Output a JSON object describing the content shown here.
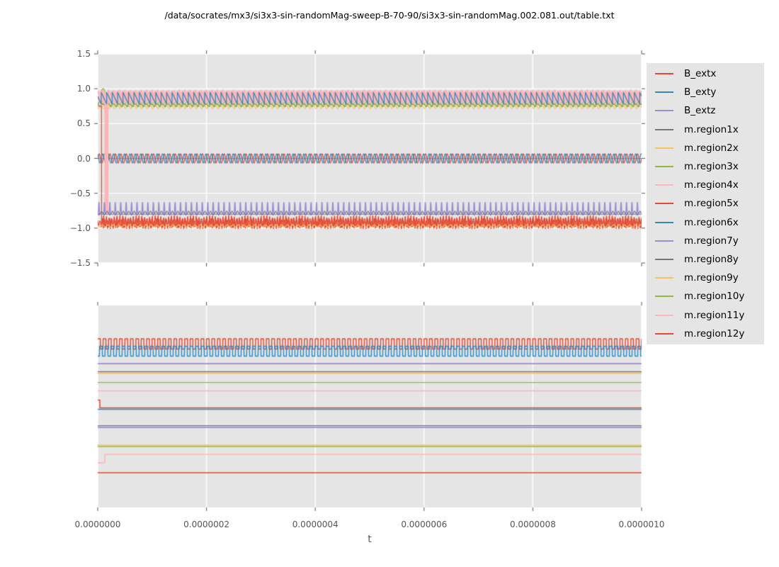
{
  "title": "/data/socrates/mx3/si3x3-sin-randomMag-sweep-B-70-90/si3x3-sin-randomMag.002.081.out/table.txt",
  "xlabel": "t",
  "colors": {
    "figure_bg": "#ffffff",
    "axes_bg": "#e5e5e5",
    "grid": "#ffffff",
    "tick_mark": "#555555",
    "tick_text": "#555555",
    "title_text": "#000000",
    "legend_bg": "#e5e5e5",
    "legend_text": "#000000"
  },
  "palette": {
    "red": "#E24A33",
    "blue": "#348ABD",
    "purple": "#988ED5",
    "gray": "#777777",
    "orange": "#FBC15E",
    "green": "#8EBA42",
    "pink": "#FFB5B8"
  },
  "legend": {
    "entries": [
      {
        "label": "B_extx",
        "color": "red"
      },
      {
        "label": "B_exty",
        "color": "blue"
      },
      {
        "label": "B_extz",
        "color": "purple"
      },
      {
        "label": "m.region1x",
        "color": "gray"
      },
      {
        "label": "m.region2x",
        "color": "orange"
      },
      {
        "label": "m.region3x",
        "color": "green"
      },
      {
        "label": "m.region4x",
        "color": "pink"
      },
      {
        "label": "m.region5x",
        "color": "red"
      },
      {
        "label": "m.region6x",
        "color": "blue"
      },
      {
        "label": "m.region7y",
        "color": "purple"
      },
      {
        "label": "m.region8y",
        "color": "gray"
      },
      {
        "label": "m.region9y",
        "color": "orange"
      },
      {
        "label": "m.region10y",
        "color": "green"
      },
      {
        "label": "m.region11y",
        "color": "pink"
      },
      {
        "label": "m.region12y",
        "color": "red"
      }
    ]
  },
  "chart_data": [
    {
      "subplot": "top",
      "type": "line",
      "xlim": [
        0,
        1e-06
      ],
      "ylim": [
        -1.5,
        1.5
      ],
      "grid": "both",
      "x_ticks": {
        "values": [
          0,
          2e-07,
          4e-07,
          6e-07,
          8e-07,
          1e-06
        ],
        "labels": [
          "",
          "",
          "",
          "",
          "",
          ""
        ]
      },
      "y_ticks": {
        "values": [
          1.5,
          1.0,
          0.5,
          0.0,
          -0.5,
          -1.0,
          -1.5
        ],
        "labels": [
          "1.5",
          "1.0",
          "0.5",
          "0.0",
          "−0.5",
          "−1.0",
          "−1.5"
        ]
      },
      "series": [
        {
          "name": "B_extz",
          "color": "purple",
          "shape": "flat",
          "level": 0.0,
          "lw": 1.2
        },
        {
          "name": "B_extx",
          "color": "red",
          "shape": "sine",
          "center": 0.0,
          "amp": 0.065,
          "freq": 100000000.0,
          "phase": 0.0,
          "lw": 1.3
        },
        {
          "name": "B_exty",
          "color": "blue",
          "shape": "sine",
          "center": 0.0,
          "amp": 0.065,
          "freq": 100000000.0,
          "phase": 2.1,
          "lw": 1.3
        },
        {
          "name": "m.region1x",
          "color": "gray",
          "shape": "triangle",
          "center": 0.765,
          "amp": 0.025,
          "freq": 100000000.0,
          "phase": 0.5,
          "lw": 1.2
        },
        {
          "name": "m.region2x",
          "color": "orange",
          "shape": "triangle",
          "center": 0.745,
          "amp": 0.032,
          "freq": 100000000.0,
          "phase": 2.6,
          "lw": 1.2
        },
        {
          "name": "m.region3x",
          "color": "green",
          "shape": "triangle",
          "center": 0.78,
          "amp": 0.035,
          "freq": 100000000.0,
          "phase": 1.2,
          "lw": 1.4,
          "bump": {
            "t0": 1e-09,
            "t1": 1.9e-08,
            "peak": 1.0
          }
        },
        {
          "name": "m.region10y",
          "color": "green",
          "shape": "triangle",
          "center": 0.79,
          "amp": 0.02,
          "freq": 100000000.0,
          "phase": 3.6,
          "lw": 1.1
        },
        {
          "name": "m.region4x",
          "color": "pink",
          "shape": "saw_down",
          "max": 0.97,
          "min": 0.8,
          "freq": 100000000.0,
          "phase": 0.0,
          "lw": 3.2
        },
        {
          "name": "m.region11y",
          "color": "pink",
          "shape": "saw_down",
          "max": 0.96,
          "min": 0.8,
          "freq": 100000000.0,
          "phase": 0.42,
          "lw": 3.2,
          "dip": {
            "t0": 1.45e-08,
            "t1": 1.75e-08,
            "to": -0.78
          }
        },
        {
          "name": "m.region5x",
          "color": "red",
          "shape": "sine2",
          "center": -0.915,
          "amp": 0.07,
          "freq": 200000000.0,
          "phase": 0.7,
          "amp2": 0.025,
          "freq2": 370000000.0,
          "lw": 1.2,
          "hold": {
            "value": 0.75,
            "until": 7e-09
          }
        },
        {
          "name": "m.region12y",
          "color": "red",
          "shape": "sine2",
          "center": -0.93,
          "amp": 0.05,
          "freq": 230000000.0,
          "phase": 2.0,
          "amp2": 0.02,
          "freq2": 310000000.0,
          "lw": 1.2
        },
        {
          "name": "m.region6x",
          "color": "blue",
          "shape": "saw_down",
          "max": 0.95,
          "min": 0.78,
          "freq": 100000000.0,
          "phase": 0.35,
          "lw": 1.3
        },
        {
          "name": "m.region7y",
          "color": "purple",
          "shape": "spikes",
          "base": -0.8,
          "peak": -0.63,
          "freq": 100000000.0,
          "phase": 0.15,
          "power": 6,
          "lw": 1.5
        },
        {
          "name": "m.region8y",
          "color": "gray",
          "shape": "triangle",
          "center": -0.785,
          "amp": 0.028,
          "freq": 100000000.0,
          "phase": 1.8,
          "lw": 1.2
        },
        {
          "name": "m.region9y",
          "color": "orange",
          "shape": "triangle",
          "center": -0.968,
          "amp": 0.02,
          "freq": 100000000.0,
          "phase": 0.9,
          "lw": 1.1
        }
      ]
    },
    {
      "subplot": "bottom",
      "type": "line",
      "xlim": [
        0,
        1e-06
      ],
      "y_axis": "unlabeled (levels given as fraction of axes height from top)",
      "grid": "vertical",
      "x_ticks": {
        "values": [
          0,
          2e-07,
          4e-07,
          6e-07,
          8e-07,
          1e-06
        ],
        "labels": [
          "0.0000000",
          "0.0000002",
          "0.0000004",
          "0.0000006",
          "0.0000008",
          "0.0000010"
        ]
      },
      "series": [
        {
          "name": "B_extx",
          "color": "red",
          "shape": "square",
          "high": 0.165,
          "low": 0.216,
          "period": 1e-08,
          "duty": 0.5,
          "phase": 0.0,
          "lw": 1.4
        },
        {
          "name": "B_exty",
          "color": "blue",
          "shape": "square",
          "high": 0.202,
          "low": 0.251,
          "period": 1.042e-08,
          "duty": 0.5,
          "phase": 0.3,
          "lw": 1.4
        },
        {
          "name": "B_extz",
          "color": "purple",
          "shape": "flat",
          "level": 0.288,
          "lw": 1.6
        },
        {
          "name": "m.region1x",
          "color": "gray",
          "shape": "flat",
          "level": 0.328,
          "lw": 1.4
        },
        {
          "name": "m.region2x",
          "color": "orange",
          "shape": "flat",
          "level": 0.337,
          "lw": 1.4
        },
        {
          "name": "m.region3x",
          "color": "green",
          "shape": "flat",
          "level": 0.381,
          "lw": 1.4
        },
        {
          "name": "m.region4x",
          "color": "pink",
          "shape": "flat",
          "level": 0.423,
          "lw": 1.4
        },
        {
          "name": "m.region5x",
          "color": "red",
          "shape": "step",
          "segments": [
            {
              "until": 4e-09,
              "level": 0.468
            },
            {
              "until": 1e-06,
              "level": 0.507
            }
          ],
          "lw": 1.5
        },
        {
          "name": "m.region6x",
          "color": "blue",
          "shape": "flat",
          "level": 0.514,
          "lw": 1.5
        },
        {
          "name": "m.region7y",
          "color": "purple",
          "shape": "flat",
          "level": 0.604,
          "lw": 1.6
        },
        {
          "name": "m.region8y",
          "color": "gray",
          "shape": "flat",
          "level": 0.595,
          "lw": 1.4
        },
        {
          "name": "m.region9y",
          "color": "orange",
          "shape": "flat",
          "level": 0.691,
          "lw": 1.4
        },
        {
          "name": "m.region10y",
          "color": "green",
          "shape": "flat",
          "level": 0.698,
          "lw": 1.4
        },
        {
          "name": "m.region11y",
          "color": "pink",
          "shape": "step",
          "segments": [
            {
              "until": 1.3e-08,
              "level": 0.779
            },
            {
              "until": 1e-06,
              "level": 0.737
            }
          ],
          "lw": 1.5
        },
        {
          "name": "m.region12y",
          "color": "red",
          "shape": "flat",
          "level": 0.828,
          "lw": 1.5
        }
      ]
    }
  ]
}
